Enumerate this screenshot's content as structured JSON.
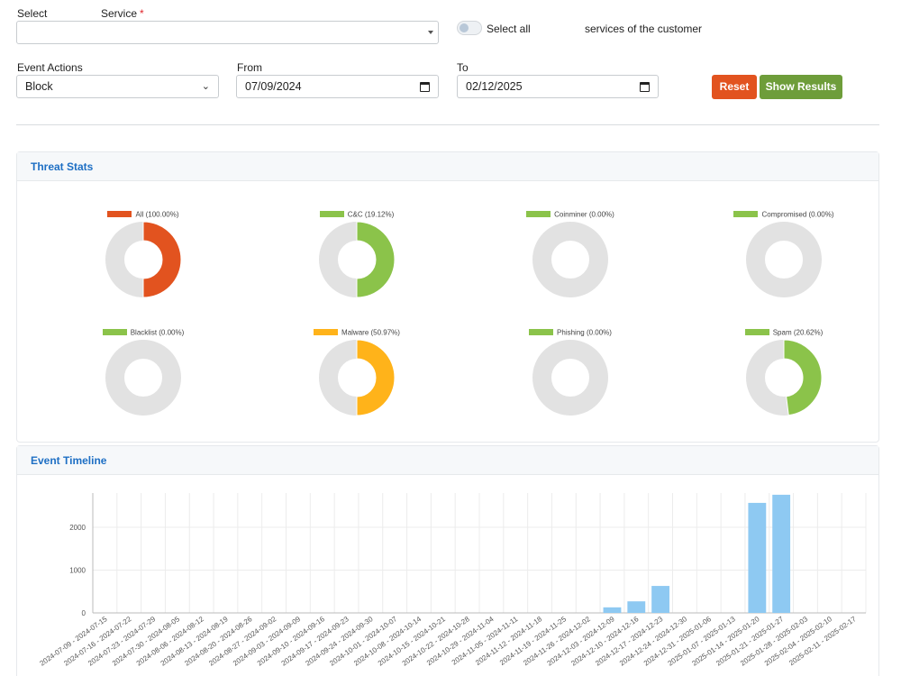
{
  "filters": {
    "select_label": "Select",
    "service_label": "Service",
    "service_required": "*",
    "service_value": "",
    "select_all_label": "Select all",
    "services_of_customer": "services of the customer",
    "event_actions_label": "Event Actions",
    "event_action_value": "Block",
    "from_label": "From",
    "from_value": "07/09/2024",
    "to_label": "To",
    "to_value": "02/12/2025",
    "reset_label": "Reset",
    "show_results_label": "Show Results"
  },
  "threat_stats": {
    "title": "Threat Stats",
    "items": [
      {
        "label": "All (100.00%)",
        "percent": 50,
        "color": "#e2531f"
      },
      {
        "label": "C&C (19.12%)",
        "percent": 50,
        "color": "#8bc34a"
      },
      {
        "label": "Coinminer (0.00%)",
        "percent": 0,
        "color": "#8bc34a"
      },
      {
        "label": "Compromised (0.00%)",
        "percent": 0,
        "color": "#8bc34a"
      },
      {
        "label": "Blacklist (0.00%)",
        "percent": 0,
        "color": "#8bc34a"
      },
      {
        "label": "Malware (50.97%)",
        "percent": 50,
        "color": "#ffb31a"
      },
      {
        "label": "Phishing (0.00%)",
        "percent": 0,
        "color": "#8bc34a"
      },
      {
        "label": "Spam (20.62%)",
        "percent": 48,
        "color": "#8bc34a"
      }
    ]
  },
  "event_timeline": {
    "title": "Event Timeline"
  },
  "chart_data": {
    "type": "bar",
    "ylim": [
      0,
      2800
    ],
    "yticks": [
      0,
      1000,
      2000
    ],
    "grid": true,
    "bar_color": "#8ec9f2",
    "categories": [
      "2024-07-09 - 2024-07-15",
      "2024-07-16 - 2024-07-22",
      "2024-07-23 - 2024-07-29",
      "2024-07-30 - 2024-08-05",
      "2024-08-06 - 2024-08-12",
      "2024-08-13 - 2024-08-19",
      "2024-08-20 - 2024-08-26",
      "2024-08-27 - 2024-09-02",
      "2024-09-03 - 2024-09-09",
      "2024-09-10 - 2024-09-16",
      "2024-09-17 - 2024-09-23",
      "2024-09-24 - 2024-09-30",
      "2024-10-01 - 2024-10-07",
      "2024-10-08 - 2024-10-14",
      "2024-10-15 - 2024-10-21",
      "2024-10-22 - 2024-10-28",
      "2024-10-29 - 2024-11-04",
      "2024-11-05 - 2024-11-11",
      "2024-11-12 - 2024-11-18",
      "2024-11-19 - 2024-11-25",
      "2024-11-26 - 2024-12-02",
      "2024-12-03 - 2024-12-09",
      "2024-12-10 - 2024-12-16",
      "2024-12-17 - 2024-12-23",
      "2024-12-24 - 2024-12-30",
      "2024-12-31 - 2025-01-06",
      "2025-01-07 - 2025-01-13",
      "2025-01-14 - 2025-01-20",
      "2025-01-21 - 2025-01-27",
      "2025-01-28 - 2025-02-03",
      "2025-02-04 - 2025-02-10",
      "2025-02-11 - 2025-02-17"
    ],
    "values": [
      0,
      0,
      0,
      0,
      0,
      0,
      0,
      0,
      0,
      0,
      0,
      0,
      0,
      0,
      0,
      0,
      0,
      0,
      0,
      0,
      0,
      130,
      270,
      630,
      0,
      0,
      0,
      2570,
      2760,
      0,
      0,
      0
    ]
  }
}
